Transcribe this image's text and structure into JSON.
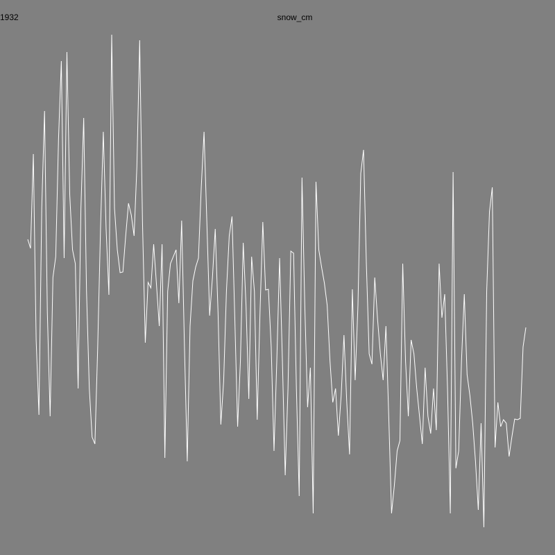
{
  "chart_data": {
    "type": "line",
    "title": "snow_cm",
    "annotation": "1932",
    "color": "#ffffff",
    "ylim": [
      0,
      800
    ],
    "values": [
      455,
      442,
      578,
      310,
      202,
      500,
      640,
      350,
      200,
      400,
      430,
      600,
      712,
      428,
      725,
      520,
      440,
      420,
      240,
      500,
      630,
      380,
      240,
      170,
      160,
      300,
      470,
      610,
      470,
      375,
      750,
      500,
      440,
      407,
      408,
      460,
      507,
      490,
      460,
      560,
      742,
      480,
      306,
      393,
      385,
      448,
      390,
      330,
      448,
      140,
      380,
      420,
      430,
      440,
      363,
      482,
      300,
      135,
      330,
      395,
      415,
      428,
      530,
      610,
      480,
      345,
      400,
      470,
      350,
      188,
      250,
      380,
      460,
      488,
      340,
      185,
      280,
      450,
      360,
      225,
      430,
      380,
      195,
      350,
      480,
      382,
      383,
      300,
      150,
      280,
      428,
      280,
      115,
      240,
      438,
      435,
      240,
      85,
      544,
      360,
      213,
      270,
      60,
      538,
      440,
      415,
      392,
      360,
      280,
      220,
      240,
      172,
      230,
      317,
      220,
      145,
      383,
      252,
      360,
      550,
      584,
      420,
      290,
      275,
      400,
      340,
      290,
      252,
      330,
      200,
      60,
      100,
      150,
      165,
      420,
      280,
      200,
      310,
      290,
      240,
      200,
      160,
      270,
      200,
      175,
      240,
      180,
      420,
      342,
      376,
      240,
      60,
      552,
      125,
      150,
      280,
      376,
      260,
      230,
      190,
      135,
      65,
      190,
      40,
      380,
      495,
      530,
      155,
      220,
      185,
      195,
      190,
      142,
      170,
      196,
      195,
      197,
      300,
      328
    ]
  }
}
